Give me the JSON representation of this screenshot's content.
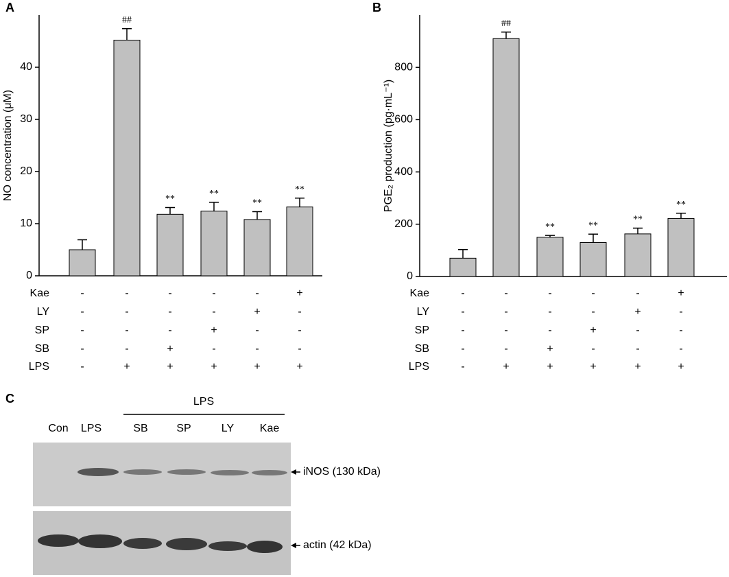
{
  "chart_data": [
    {
      "type": "bar",
      "panel": "A",
      "y_label": "NO concentration (μM)",
      "categories": [
        null,
        null,
        null,
        null,
        null,
        null
      ],
      "values": [
        5.0,
        45.2,
        11.8,
        12.4,
        10.8,
        13.2
      ],
      "errors": [
        1.9,
        2.2,
        1.3,
        1.7,
        1.5,
        1.7
      ],
      "value_annotations": [
        null,
        "##",
        "**",
        "**",
        "**",
        "**"
      ],
      "color": "#c0c0c0",
      "ylim": [
        0,
        50
      ],
      "yticks": [
        0,
        10,
        20,
        30,
        40
      ],
      "treatments": [
        {
          "name": "Kae",
          "signs": [
            "-",
            "-",
            "-",
            "-",
            "-",
            "+"
          ]
        },
        {
          "name": "LY",
          "signs": [
            "-",
            "-",
            "-",
            "-",
            "+",
            "-"
          ]
        },
        {
          "name": "SP",
          "signs": [
            "-",
            "-",
            "-",
            "+",
            "-",
            "-"
          ]
        },
        {
          "name": "SB",
          "signs": [
            "-",
            "-",
            "+",
            "-",
            "-",
            "-"
          ]
        },
        {
          "name": "LPS",
          "signs": [
            "-",
            "+",
            "+",
            "+",
            "+",
            "+"
          ]
        }
      ]
    },
    {
      "type": "bar",
      "panel": "B",
      "y_label": "PGE₂ production (pg·mL⁻¹)",
      "categories": [
        null,
        null,
        null,
        null,
        null,
        null
      ],
      "values": [
        70,
        910,
        150,
        130,
        163,
        222
      ],
      "errors": [
        33,
        25,
        7,
        32,
        22,
        20
      ],
      "value_annotations": [
        null,
        "##",
        "**",
        "**",
        "**",
        "**"
      ],
      "color": "#c0c0c0",
      "ylim": [
        0,
        1000
      ],
      "yticks": [
        0,
        200,
        400,
        600,
        800
      ],
      "treatments": [
        {
          "name": "Kae",
          "signs": [
            "-",
            "-",
            "-",
            "-",
            "-",
            "+"
          ]
        },
        {
          "name": "LY",
          "signs": [
            "-",
            "-",
            "-",
            "-",
            "+",
            "-"
          ]
        },
        {
          "name": "SP",
          "signs": [
            "-",
            "-",
            "-",
            "+",
            "-",
            "-"
          ]
        },
        {
          "name": "SB",
          "signs": [
            "-",
            "-",
            "+",
            "-",
            "-",
            "-"
          ]
        },
        {
          "name": "LPS",
          "signs": [
            "-",
            "+",
            "+",
            "+",
            "+",
            "+"
          ]
        }
      ]
    }
  ],
  "blot": {
    "panel": "C",
    "group_label": "LPS",
    "lanes": [
      "Con",
      "LPS",
      "SB",
      "SP",
      "LY",
      "Kae"
    ],
    "bands": [
      "iNOS (130 kDa)",
      "actin (42 kDa)"
    ]
  }
}
